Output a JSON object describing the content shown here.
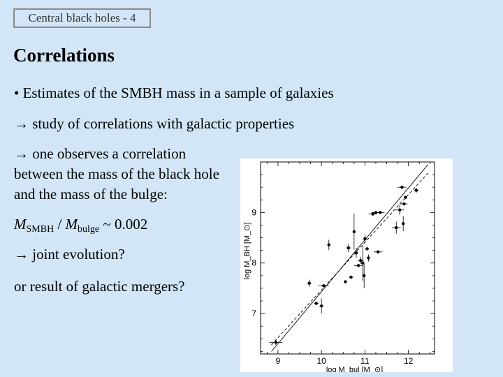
{
  "header": {
    "slide_tag": "Central black holes - 4",
    "title": "Correlations"
  },
  "bullets": {
    "b1": "• Estimates of the SMBH mass in a sample of galaxies",
    "b2": "→ study of correlations with galactic properties",
    "b3": "→ one observes a correlation between the mass of the black hole and the mass of the bulge:",
    "eq_m1": "M",
    "eq_sub1": "SMBH",
    "eq_mid": " / ",
    "eq_m2": "M",
    "eq_sub2": "bulge",
    "eq_end": " ~ 0.002",
    "b4": "→ joint evolution?",
    "b5": "or result of galactic mergers?"
  },
  "chart_data": {
    "type": "scatter",
    "xlabel": "log M_bul [M_⊙]",
    "ylabel": "log M_BH [M_⊙]",
    "xlim": [
      8.6,
      12.6
    ],
    "ylim": [
      6.2,
      10.0
    ],
    "xticks": [
      "9",
      "10",
      "11",
      "12"
    ],
    "yticks": [
      "7",
      "8",
      "9"
    ],
    "points": [
      {
        "x": 8.95,
        "y": 6.43,
        "xerr": 0.15,
        "yerr": 0.05
      },
      {
        "x": 9.72,
        "y": 7.6,
        "xerr": 0.05,
        "yerr": 0.07
      },
      {
        "x": 9.88,
        "y": 7.2,
        "xerr": 0.05,
        "yerr": 0.0
      },
      {
        "x": 10.0,
        "y": 7.15,
        "xerr": 0.05,
        "yerr": 0.15
      },
      {
        "x": 10.05,
        "y": 7.55,
        "xerr": 0.12,
        "yerr": 0.0
      },
      {
        "x": 10.17,
        "y": 8.36,
        "xerr": 0.0,
        "yerr": 0.1
      },
      {
        "x": 10.55,
        "y": 7.63,
        "xerr": 0.0,
        "yerr": 0.0
      },
      {
        "x": 10.62,
        "y": 8.3,
        "xerr": 0.05,
        "yerr": 0.08
      },
      {
        "x": 10.68,
        "y": 7.72,
        "xerr": 0.05,
        "yerr": 0.0
      },
      {
        "x": 10.75,
        "y": 8.62,
        "xerr": 0.0,
        "yerr": 0.36
      },
      {
        "x": 10.8,
        "y": 8.2,
        "xerr": 0.0,
        "yerr": 0.1
      },
      {
        "x": 10.85,
        "y": 7.95,
        "xerr": 0.1,
        "yerr": 0.0
      },
      {
        "x": 10.9,
        "y": 8.05,
        "xerr": 0.07,
        "yerr": 0.07
      },
      {
        "x": 10.95,
        "y": 8.0,
        "xerr": 0.0,
        "yerr": 0.35
      },
      {
        "x": 10.98,
        "y": 7.75,
        "xerr": 0.0,
        "yerr": 0.25
      },
      {
        "x": 11.0,
        "y": 8.48,
        "xerr": 0.05,
        "yerr": 0.08
      },
      {
        "x": 11.05,
        "y": 8.28,
        "xerr": 0.05,
        "yerr": 0.0
      },
      {
        "x": 11.08,
        "y": 8.1,
        "xerr": 0.0,
        "yerr": 0.07
      },
      {
        "x": 11.3,
        "y": 8.22,
        "xerr": 0.1,
        "yerr": 0.0
      },
      {
        "x": 11.18,
        "y": 8.97,
        "xerr": 0.1,
        "yerr": 0.0
      },
      {
        "x": 11.25,
        "y": 9.0,
        "xerr": 0.1,
        "yerr": 0.0
      },
      {
        "x": 11.35,
        "y": 9.0,
        "xerr": 0.1,
        "yerr": 0.0
      },
      {
        "x": 11.72,
        "y": 8.7,
        "xerr": 0.1,
        "yerr": 0.12
      },
      {
        "x": 11.8,
        "y": 9.05,
        "xerr": 0.1,
        "yerr": 0.1
      },
      {
        "x": 11.85,
        "y": 9.5,
        "xerr": 0.1,
        "yerr": 0.0
      },
      {
        "x": 11.88,
        "y": 8.78,
        "xerr": 0.0,
        "yerr": 0.15
      },
      {
        "x": 11.9,
        "y": 9.17,
        "xerr": 0.08,
        "yerr": 0.0
      },
      {
        "x": 11.93,
        "y": 9.3,
        "xerr": 0.0,
        "yerr": 0.0
      },
      {
        "x": 12.18,
        "y": 9.44,
        "xerr": 0.05,
        "yerr": 0.05
      }
    ],
    "fit_lines": [
      {
        "x": [
          8.85,
          12.45
        ],
        "y": [
          6.25,
          9.95
        ],
        "style": "solid"
      },
      {
        "x": [
          8.85,
          12.45
        ],
        "y": [
          6.38,
          9.78
        ],
        "style": "dashed"
      }
    ],
    "grid": false
  }
}
